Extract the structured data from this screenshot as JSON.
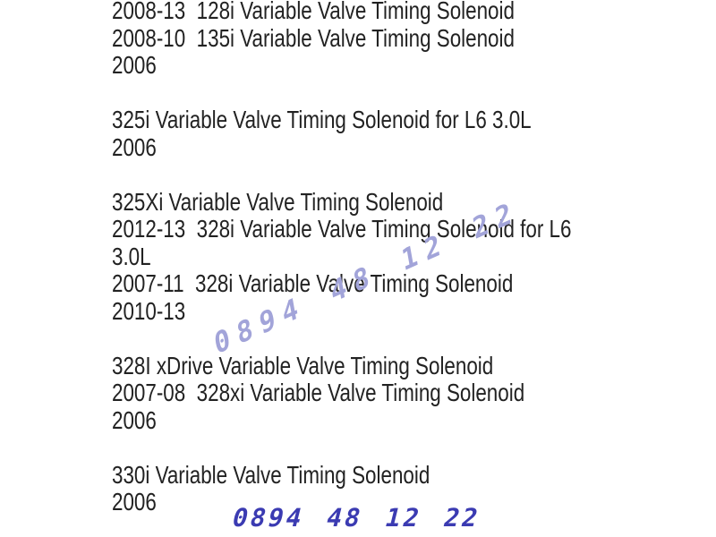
{
  "document": {
    "lines": [
      "2008-13  128i Variable Valve Timing Solenoid",
      "2008-10  135i Variable Valve Timing Solenoid",
      "2006",
      "",
      "325i Variable Valve Timing Solenoid for L6 3.0L",
      "2006",
      "",
      "325Xi Variable Valve Timing Solenoid",
      "2012-13  328i Variable Valve Timing Solenoid for L6",
      "3.0L",
      "2007-11  328i Variable Valve Timing Solenoid",
      "2010-13",
      "",
      "328I xDrive Variable Valve Timing Solenoid",
      "2007-08  328xi Variable Valve Timing Solenoid",
      "2006",
      "",
      "330i Variable Valve Timing Solenoid",
      "2006"
    ]
  },
  "watermarks": {
    "diagonal": {
      "text": "0894 48 12 22",
      "color": "#a2a4d9"
    },
    "bottom": {
      "text": "0894 48 12 22",
      "color": "#3b3bb2"
    }
  },
  "colors": {
    "text": "#222222",
    "background": "#ffffff"
  }
}
